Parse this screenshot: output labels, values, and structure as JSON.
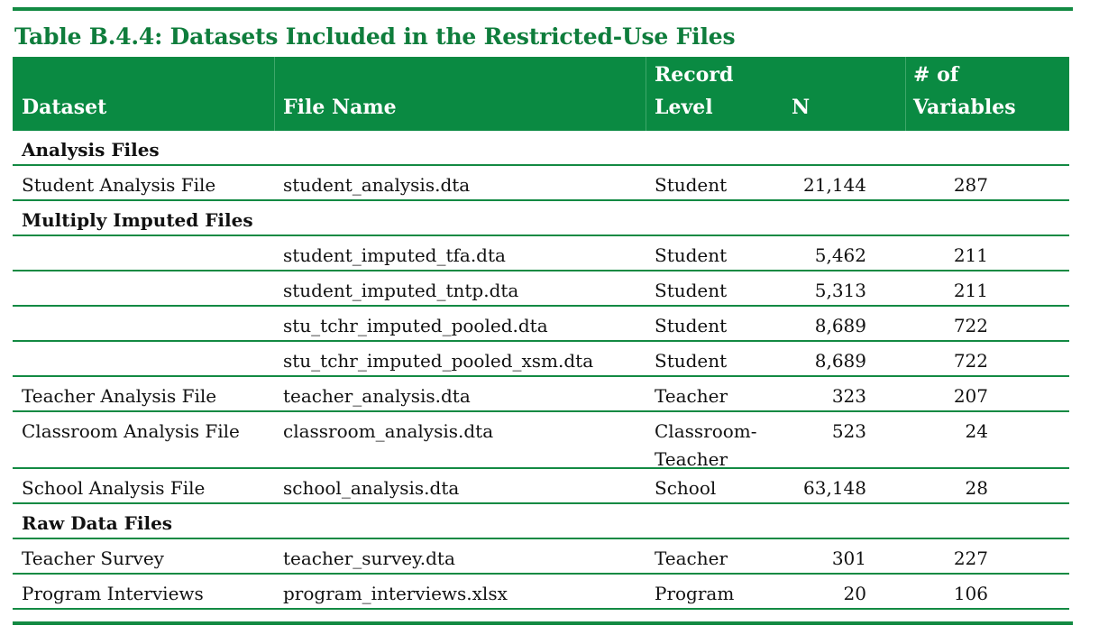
{
  "title": "Table B.4.4: Datasets Included in the Restricted-Use Files",
  "columns": {
    "dataset": "Dataset",
    "file_name": "File Name",
    "record_level_1": "Record",
    "record_level_2": "Level",
    "n": "N",
    "vars_1": "# of",
    "vars_2": "Variables"
  },
  "rows": [
    {
      "type": "section",
      "label": "Analysis Files"
    },
    {
      "dataset": "Student Analysis File",
      "file": "student_analysis.dta",
      "level": "Student",
      "n": "21,144",
      "vars": "287"
    },
    {
      "type": "section",
      "label": "Multiply Imputed Files"
    },
    {
      "dataset": "",
      "file": "student_imputed_tfa.dta",
      "level": "Student",
      "n": "5,462",
      "vars": "211"
    },
    {
      "dataset": "",
      "file": "student_imputed_tntp.dta",
      "level": "Student",
      "n": "5,313",
      "vars": "211"
    },
    {
      "dataset": "",
      "file": "stu_tchr_imputed_pooled.dta",
      "level": "Student",
      "n": "8,689",
      "vars": "722"
    },
    {
      "dataset": "",
      "file": "stu_tchr_imputed_pooled_xsm.dta",
      "level": "Student",
      "n": "8,689",
      "vars": "722"
    },
    {
      "dataset": "Teacher Analysis File",
      "file": "teacher_analysis.dta",
      "level": "Teacher",
      "n": "323",
      "vars": "207"
    },
    {
      "dataset": "Classroom Analysis File",
      "file": "classroom_analysis.dta",
      "level": "Classroom-Teacher",
      "n": "523",
      "vars": "24"
    },
    {
      "dataset": "School Analysis File",
      "file": "school_analysis.dta",
      "level": "School",
      "n": "63,148",
      "vars": "28"
    },
    {
      "type": "section",
      "label": "Raw Data Files"
    },
    {
      "dataset": "Teacher Survey",
      "file": "teacher_survey.dta",
      "level": "Teacher",
      "n": "301",
      "vars": "227"
    },
    {
      "dataset": "Program Interviews",
      "file": "program_interviews.xlsx",
      "level": "Program",
      "n": "20",
      "vars": "106"
    }
  ]
}
